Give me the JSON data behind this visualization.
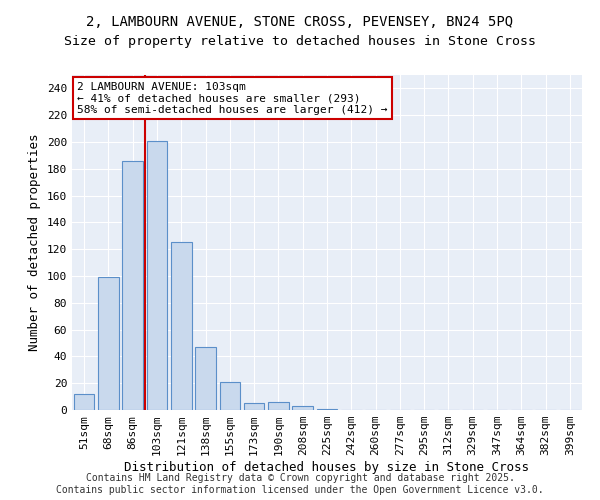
{
  "title_line1": "2, LAMBOURN AVENUE, STONE CROSS, PEVENSEY, BN24 5PQ",
  "title_line2": "Size of property relative to detached houses in Stone Cross",
  "xlabel": "Distribution of detached houses by size in Stone Cross",
  "ylabel": "Number of detached properties",
  "bar_color": "#c9d9ed",
  "bar_edge_color": "#5b8fc9",
  "background_color": "#e8eef7",
  "categories": [
    "51sqm",
    "68sqm",
    "86sqm",
    "103sqm",
    "121sqm",
    "138sqm",
    "155sqm",
    "173sqm",
    "190sqm",
    "208sqm",
    "225sqm",
    "242sqm",
    "260sqm",
    "277sqm",
    "295sqm",
    "312sqm",
    "329sqm",
    "347sqm",
    "364sqm",
    "382sqm",
    "399sqm"
  ],
  "values": [
    12,
    99,
    186,
    201,
    125,
    47,
    21,
    5,
    6,
    3,
    1,
    0,
    0,
    0,
    0,
    0,
    0,
    0,
    0,
    0,
    0
  ],
  "ylim": [
    0,
    250
  ],
  "yticks": [
    0,
    20,
    40,
    60,
    80,
    100,
    120,
    140,
    160,
    180,
    200,
    220,
    240
  ],
  "vline_pos": 2.5,
  "vline_color": "#cc0000",
  "annotation_text": "2 LAMBOURN AVENUE: 103sqm\n← 41% of detached houses are smaller (293)\n58% of semi-detached houses are larger (412) →",
  "annotation_box_color": "#ffffff",
  "annotation_box_edge": "#cc0000",
  "footer_line1": "Contains HM Land Registry data © Crown copyright and database right 2025.",
  "footer_line2": "Contains public sector information licensed under the Open Government Licence v3.0.",
  "title_fontsize": 10,
  "subtitle_fontsize": 9.5,
  "axis_label_fontsize": 9,
  "tick_fontsize": 8,
  "annotation_fontsize": 8,
  "footer_fontsize": 7
}
